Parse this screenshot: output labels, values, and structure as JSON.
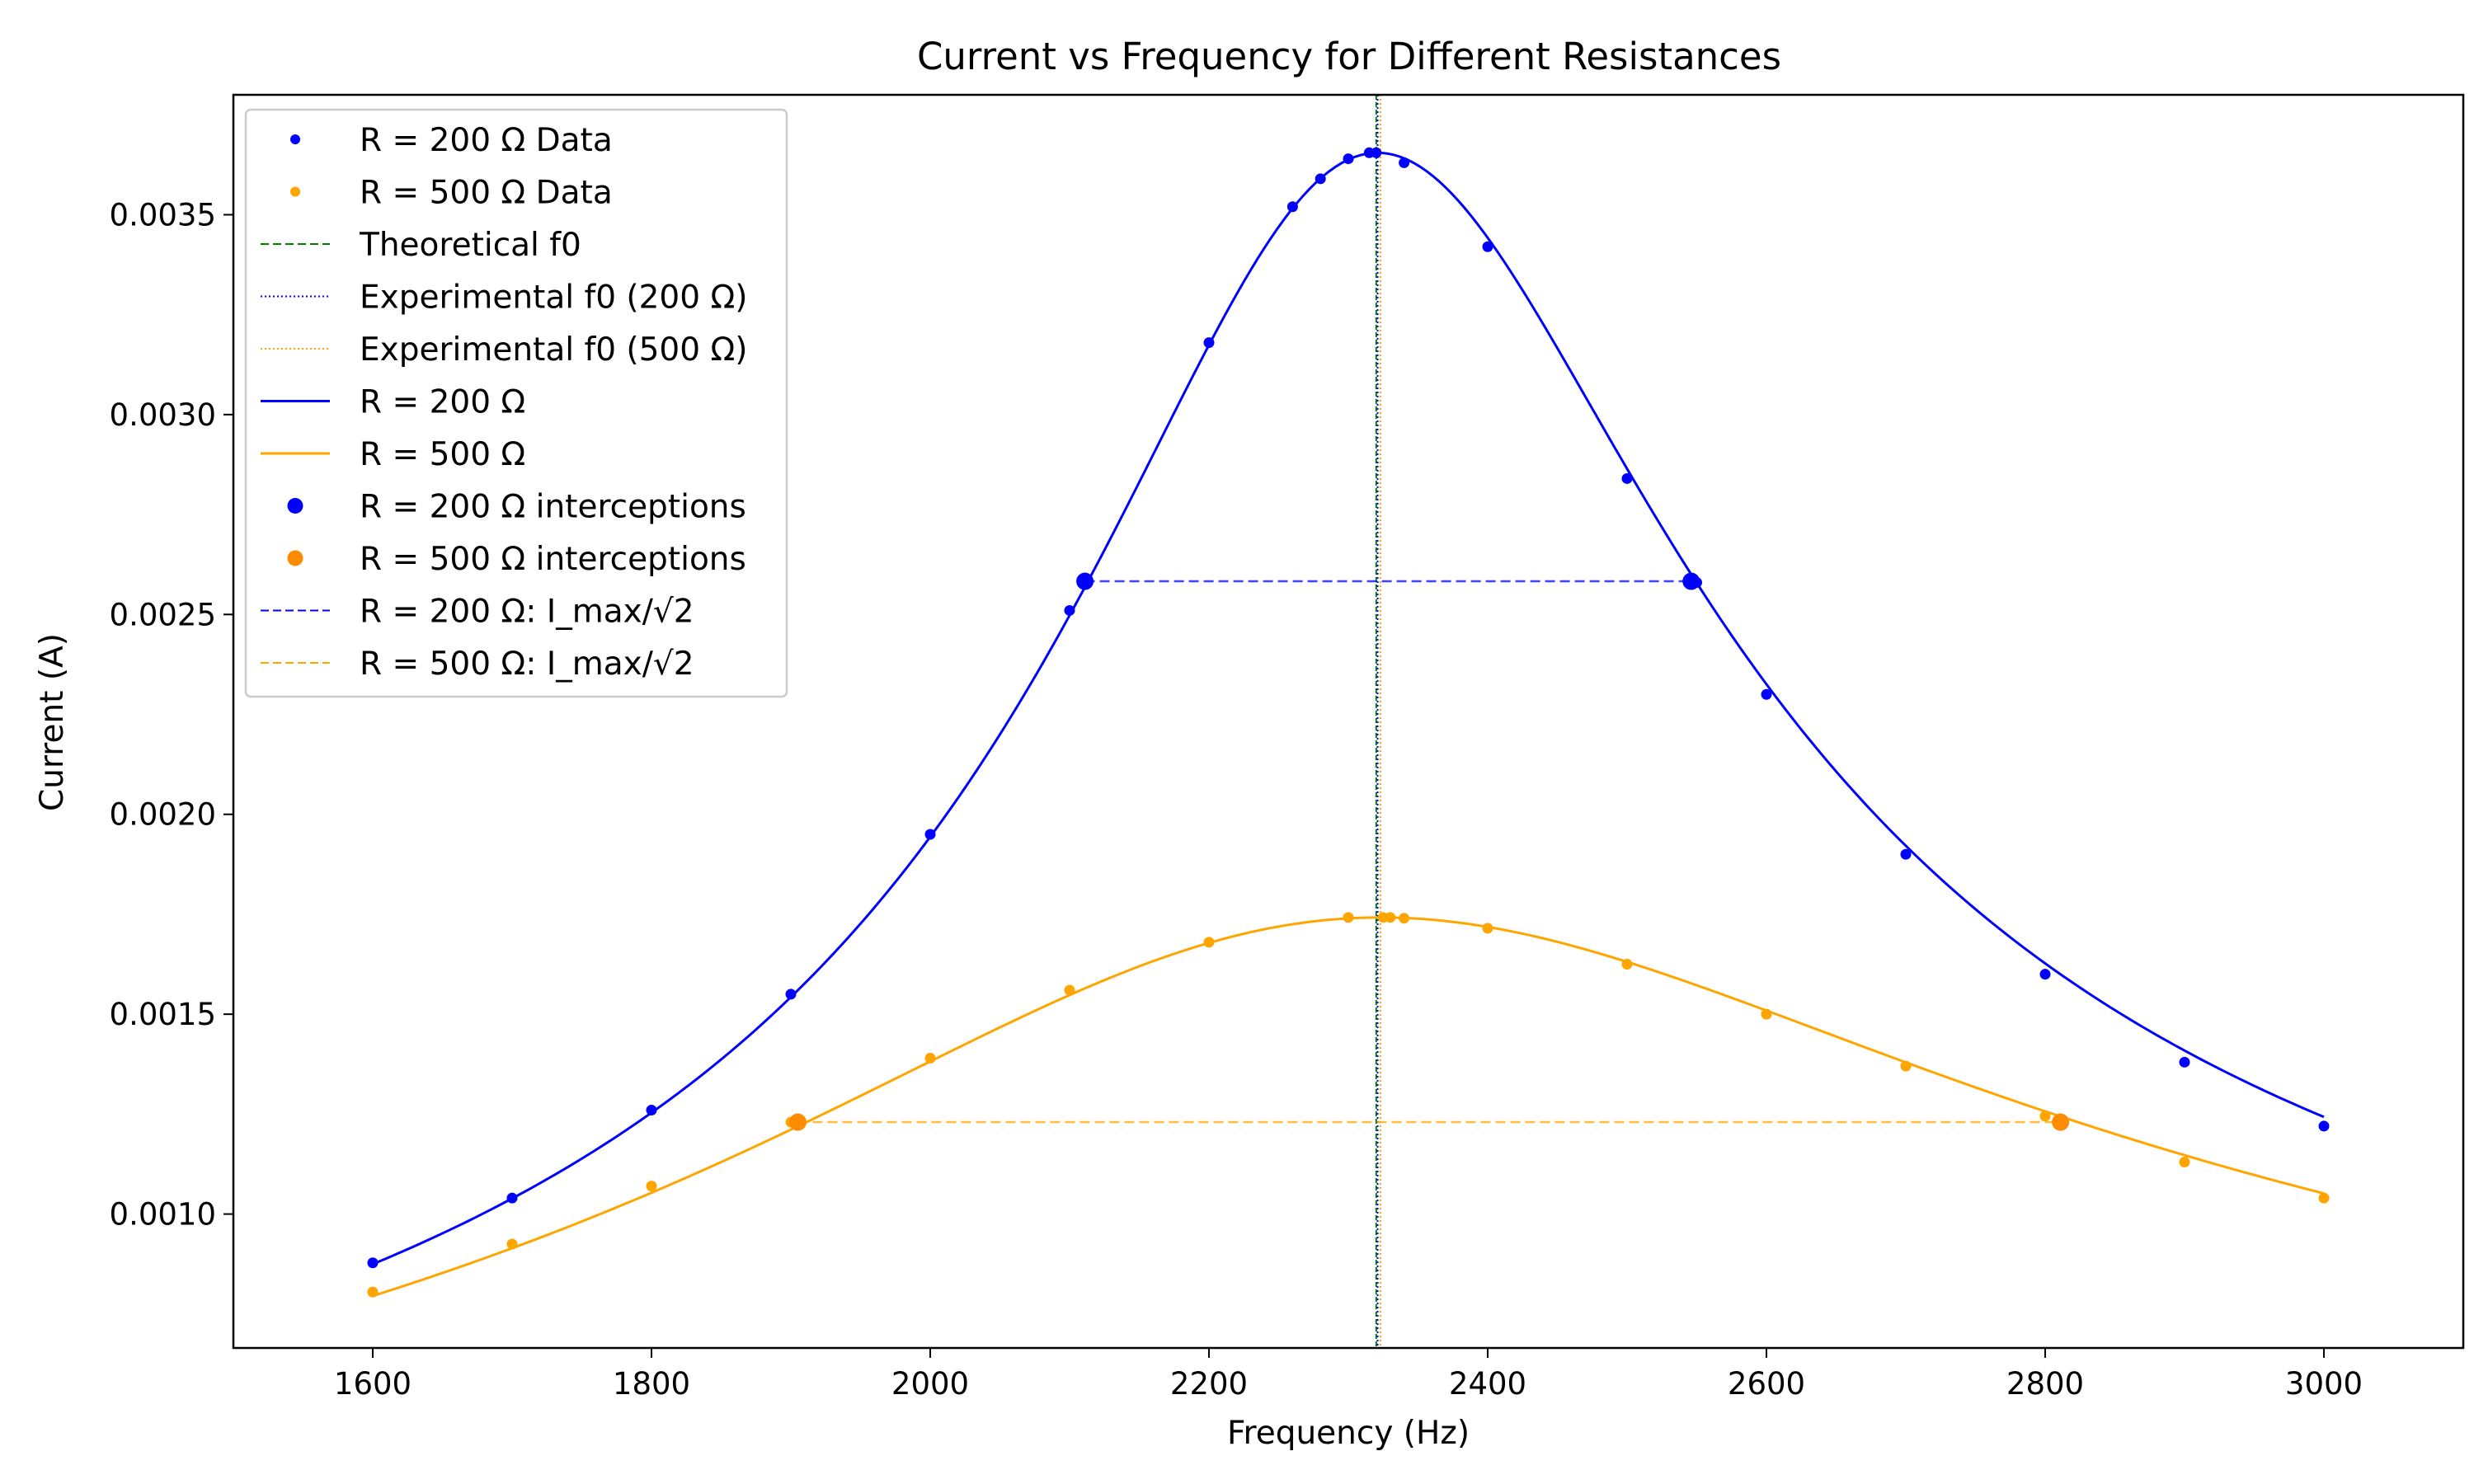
{
  "chart_data": {
    "type": "line",
    "title": "Current vs Frequency for Different Resistances",
    "xlabel": "Frequency (Hz)",
    "ylabel": "Current (A)",
    "xlim": [
      1500,
      3100
    ],
    "ylim": [
      0.000665,
      0.0038
    ],
    "x_ticks": [
      1600,
      1800,
      2000,
      2200,
      2400,
      2600,
      2800,
      3000
    ],
    "x_tick_labels": [
      "1600",
      "1800",
      "2000",
      "2200",
      "2400",
      "2600",
      "2800",
      "3000"
    ],
    "y_ticks": [
      0.001,
      0.0015,
      0.002,
      0.0025,
      0.003,
      0.0035
    ],
    "y_tick_labels": [
      "0.0010",
      "0.0015",
      "0.0020",
      "0.0025",
      "0.0030",
      "0.0035"
    ],
    "grid": false,
    "legend_position": "upper-left",
    "colors": {
      "r200": "#0000ff",
      "r500": "#ffa500",
      "r500_intercept": "#ff8c00",
      "theoretical": "#008000"
    },
    "theoretical_f0": 2320,
    "series": [
      {
        "name": "R = 200 Ω Data",
        "resistance": 200,
        "x": [
          1600,
          1700,
          1800,
          1900,
          2000,
          2100,
          2200,
          2260,
          2280,
          2300,
          2315,
          2320,
          2340,
          2400,
          2500,
          2550,
          2600,
          2700,
          2800,
          2900,
          3000
        ],
        "y": [
          0.000878,
          0.00104,
          0.00126,
          0.00155,
          0.00195,
          0.00251,
          0.00318,
          0.00352,
          0.00359,
          0.00364,
          0.003655,
          0.003655,
          0.00363,
          0.00342,
          0.00284,
          0.00258,
          0.0023,
          0.0019,
          0.0016,
          0.00138,
          0.00122
        ],
        "experimental_f0": 2321,
        "half_power_level": 0.002583,
        "interceptions": [
          [
            2111,
            0.002583
          ],
          [
            2546,
            0.002583
          ]
        ]
      },
      {
        "name": "R = 500 Ω Data",
        "resistance": 500,
        "x": [
          1600,
          1700,
          1800,
          1900,
          2000,
          2100,
          2200,
          2300,
          2325,
          2330,
          2340,
          2400,
          2500,
          2600,
          2700,
          2800,
          2900,
          3000
        ],
        "y": [
          0.000805,
          0.000925,
          0.00107,
          0.00123,
          0.00139,
          0.00156,
          0.00168,
          0.001742,
          0.001742,
          0.001742,
          0.00174,
          0.001715,
          0.001625,
          0.0015,
          0.00137,
          0.001245,
          0.00113,
          0.00104
        ],
        "experimental_f0": 2323,
        "half_power_level": 0.00123,
        "interceptions": [
          [
            1905,
            0.00123
          ],
          [
            2811,
            0.00123
          ]
        ]
      }
    ]
  },
  "legend": [
    {
      "label": "R = 200 Ω Data",
      "style": "small-dot",
      "color": "#0000ff"
    },
    {
      "label": "R = 500 Ω Data",
      "style": "small-dot",
      "color": "#ffa500"
    },
    {
      "label": "Theoretical f0",
      "style": "dashed",
      "color": "#008000"
    },
    {
      "label": "Experimental f0 (200 Ω)",
      "style": "dotted",
      "color": "#0000ff"
    },
    {
      "label": "Experimental f0 (500 Ω)",
      "style": "dotted",
      "color": "#ffa500"
    },
    {
      "label": "R = 200 Ω",
      "style": "solid",
      "color": "#0000ff"
    },
    {
      "label": "R = 500 Ω",
      "style": "solid",
      "color": "#ffa500"
    },
    {
      "label": "R = 200 Ω interceptions",
      "style": "big-dot",
      "color": "#0000ff"
    },
    {
      "label": "R = 500 Ω interceptions",
      "style": "big-dot",
      "color": "#ff8c00"
    },
    {
      "label": "R = 200 Ω: I_max/√2",
      "style": "dashed",
      "color": "#0000ff"
    },
    {
      "label": "R = 500 Ω: I_max/√2",
      "style": "dashed",
      "color": "#ffa500"
    }
  ]
}
